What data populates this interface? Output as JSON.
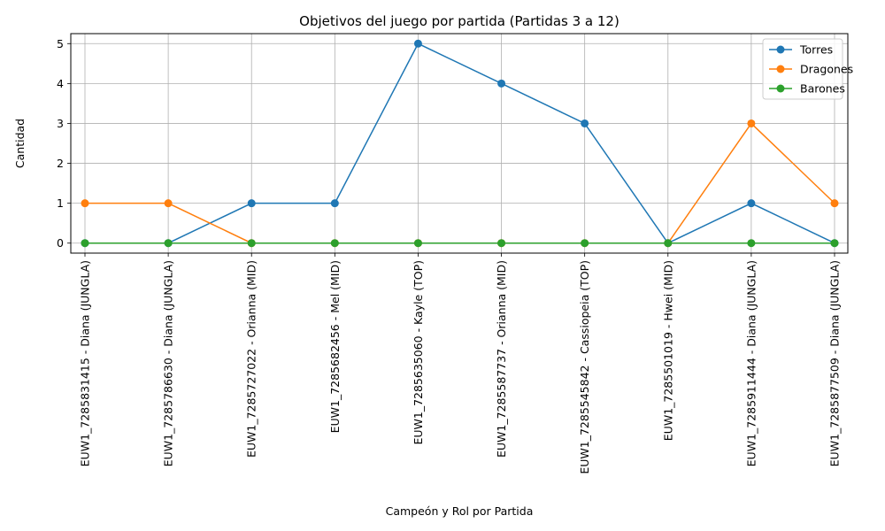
{
  "chart_data": {
    "type": "line",
    "title": "Objetivos del juego por partida (Partidas 3 a 12)",
    "xlabel": "Campeón y Rol por Partida",
    "ylabel": "Cantidad",
    "categories": [
      "EUW1_7285831415 - Diana (JUNGLA)",
      "EUW1_7285786630 - Diana (JUNGLA)",
      "EUW1_7285727022 - Orianna (MID)",
      "EUW1_7285682456 - Mel (MID)",
      "EUW1_7285635060 - Kayle (TOP)",
      "EUW1_7285587737 - Orianna (MID)",
      "EUW1_7285545842 - Cassiopeia (TOP)",
      "EUW1_7285501019 - Hwei (MID)",
      "EUW1_7285911444 - Diana (JUNGLA)",
      "EUW1_7285877509 - Diana (JUNGLA)"
    ],
    "yticks": [
      0,
      1,
      2,
      3,
      4,
      5
    ],
    "ylim": [
      -0.25,
      5.25
    ],
    "grid": true,
    "legend_position": "top-right",
    "series": [
      {
        "name": "Torres",
        "color": "#1f77b4",
        "values": [
          0,
          0,
          1,
          1,
          5,
          4,
          3,
          0,
          1,
          0
        ]
      },
      {
        "name": "Dragones",
        "color": "#ff7f0e",
        "values": [
          1,
          1,
          0,
          0,
          0,
          0,
          0,
          0,
          3,
          1
        ]
      },
      {
        "name": "Barones",
        "color": "#2ca02c",
        "values": [
          0,
          0,
          0,
          0,
          0,
          0,
          0,
          0,
          0,
          0
        ]
      }
    ]
  }
}
